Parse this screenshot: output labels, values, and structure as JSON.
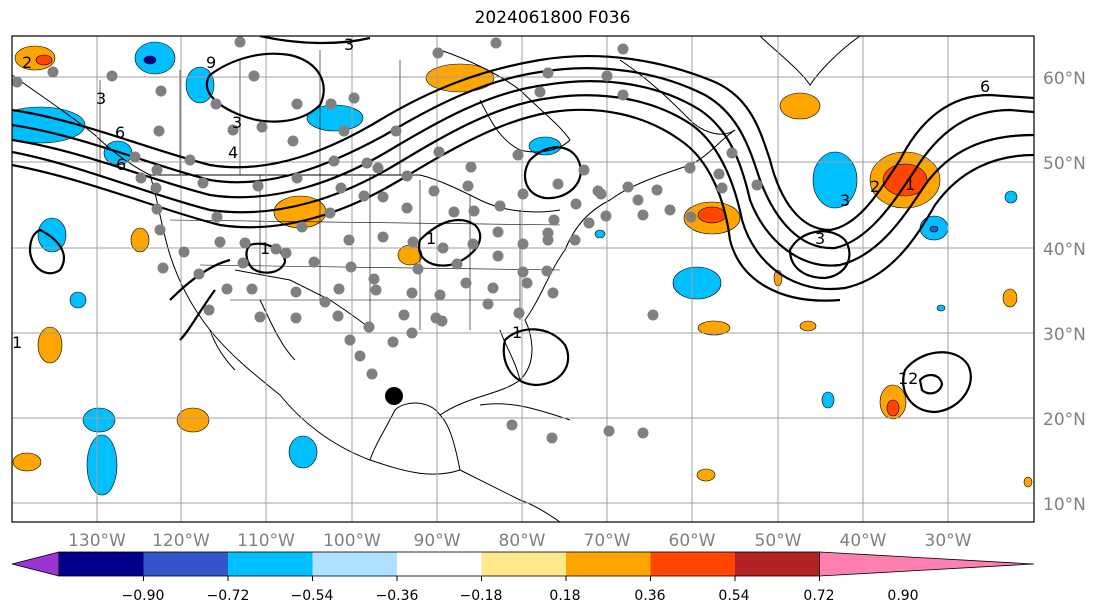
{
  "title": "2024061800 F036",
  "latitude_labels": [
    "60°N",
    "50°N",
    "40°N",
    "30°N",
    "20°N",
    "10°N"
  ],
  "longitude_labels": [
    "130°W",
    "120°W",
    "110°W",
    "100°W",
    "90°W",
    "80°W",
    "70°W",
    "60°W",
    "50°W",
    "40°W",
    "30°W"
  ],
  "colorbar": {
    "tick_labels": [
      "−0.90",
      "−0.72",
      "−0.54",
      "−0.36",
      "−0.18",
      "0.18",
      "0.36",
      "0.54",
      "0.72",
      "0.90"
    ],
    "colors": [
      "#9a35d4",
      "#00008b",
      "#3456c8",
      "#00bfff",
      "#aee0ff",
      "#ffffff",
      "#ffe78a",
      "#ffa500",
      "#ff4500",
      "#b22222",
      "#ff7fb0"
    ]
  },
  "contour_labels": [
    "3",
    "3",
    "4",
    "6",
    "6",
    "9",
    "1",
    "1",
    "1",
    "1",
    "1",
    "2",
    "3",
    "3",
    "6",
    "12",
    "2",
    "3"
  ],
  "colors": {
    "contour": "#000000",
    "grid": "#a0a0a0",
    "station_marker": "#808080",
    "storm_marker": "#000000"
  }
}
